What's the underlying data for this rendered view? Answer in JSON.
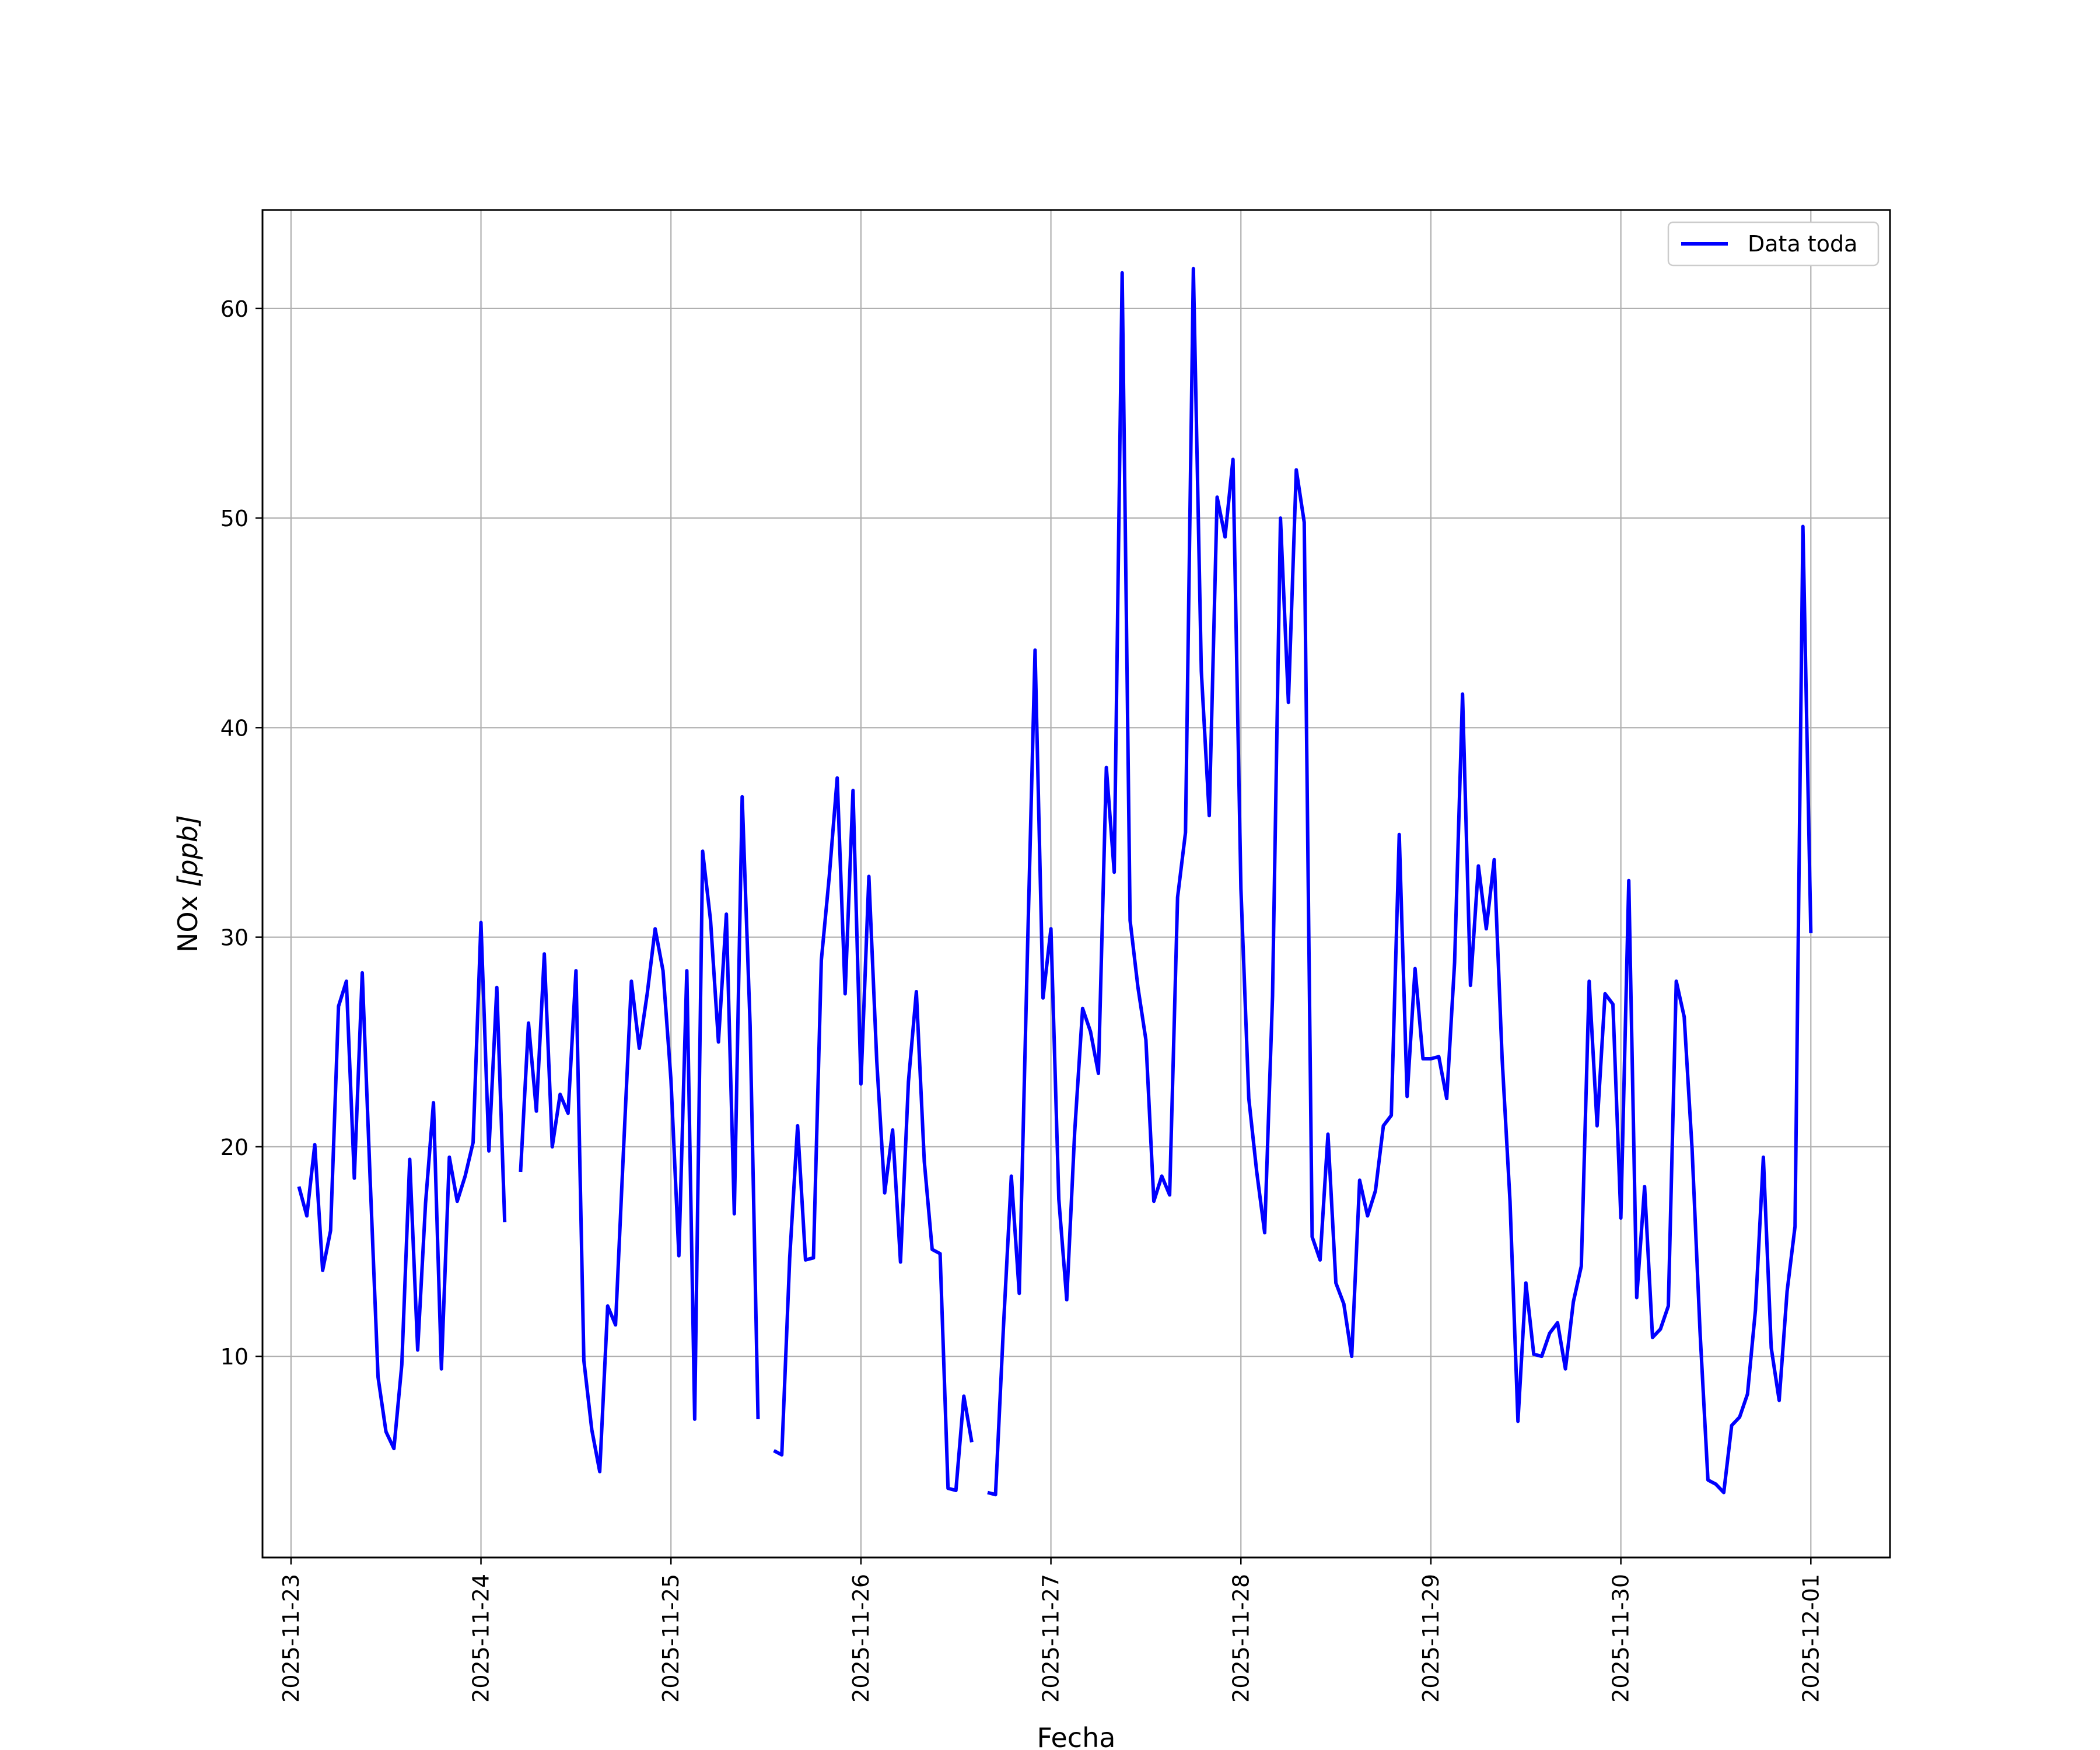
{
  "chart_data": {
    "type": "line",
    "xlabel": "Fecha",
    "ylabel_main": "NOx ",
    "ylabel_unit": "[ppb]",
    "x_ticks": [
      "2025-11-23",
      "2025-11-24",
      "2025-11-25",
      "2025-11-26",
      "2025-11-27",
      "2025-11-28",
      "2025-11-29",
      "2025-11-30",
      "2025-12-01"
    ],
    "y_ticks": [
      "10",
      "20",
      "30",
      "40",
      "50",
      "60"
    ],
    "xlim": [
      "2025-11-22 20:24",
      "2025-12-01 10:00"
    ],
    "ylim": [
      0.4,
      64.7
    ],
    "grid": true,
    "legend_position": "upper right",
    "series": [
      {
        "name": "Data toda",
        "color": "#0000ff",
        "x": [
          "2025-11-23 01:00",
          "2025-11-23 02:00",
          "2025-11-23 03:00",
          "2025-11-23 04:00",
          "2025-11-23 05:00",
          "2025-11-23 06:00",
          "2025-11-23 07:00",
          "2025-11-23 08:00",
          "2025-11-23 09:00",
          "2025-11-23 10:00",
          "2025-11-23 11:00",
          "2025-11-23 12:00",
          "2025-11-23 13:00",
          "2025-11-23 14:00",
          "2025-11-23 15:00",
          "2025-11-23 16:00",
          "2025-11-23 17:00",
          "2025-11-23 18:00",
          "2025-11-23 19:00",
          "2025-11-23 20:00",
          "2025-11-23 21:00",
          "2025-11-23 22:00",
          "2025-11-23 23:00",
          "2025-11-24 00:00",
          "2025-11-24 01:00",
          "2025-11-24 02:00",
          "2025-11-24 03:00",
          "2025-11-24 05:00",
          "2025-11-24 06:00",
          "2025-11-24 07:00",
          "2025-11-24 08:00",
          "2025-11-24 09:00",
          "2025-11-24 10:00",
          "2025-11-24 11:00",
          "2025-11-24 12:00",
          "2025-11-24 13:00",
          "2025-11-24 14:00",
          "2025-11-24 15:00",
          "2025-11-24 16:00",
          "2025-11-24 17:00",
          "2025-11-24 18:00",
          "2025-11-24 19:00",
          "2025-11-24 20:00",
          "2025-11-24 21:00",
          "2025-11-24 22:00",
          "2025-11-24 23:00",
          "2025-11-25 00:00",
          "2025-11-25 01:00",
          "2025-11-25 02:00",
          "2025-11-25 03:00",
          "2025-11-25 04:00",
          "2025-11-25 05:00",
          "2025-11-25 06:00",
          "2025-11-25 07:00",
          "2025-11-25 08:00",
          "2025-11-25 09:00",
          "2025-11-25 10:00",
          "2025-11-25 11:00",
          "2025-11-25 13:00",
          "2025-11-25 14:00",
          "2025-11-25 15:00",
          "2025-11-25 16:00",
          "2025-11-25 17:00",
          "2025-11-25 18:00",
          "2025-11-25 19:00",
          "2025-11-25 20:00",
          "2025-11-25 21:00",
          "2025-11-25 22:00",
          "2025-11-25 23:00",
          "2025-11-26 00:00",
          "2025-11-26 01:00",
          "2025-11-26 02:00",
          "2025-11-26 03:00",
          "2025-11-26 04:00",
          "2025-11-26 05:00",
          "2025-11-26 06:00",
          "2025-11-26 07:00",
          "2025-11-26 08:00",
          "2025-11-26 09:00",
          "2025-11-26 10:00",
          "2025-11-26 11:00",
          "2025-11-26 12:00",
          "2025-11-26 13:00",
          "2025-11-26 14:00",
          "2025-11-26 16:00",
          "2025-11-26 17:00",
          "2025-11-26 18:00",
          "2025-11-26 19:00",
          "2025-11-26 20:00",
          "2025-11-26 21:00",
          "2025-11-26 22:00",
          "2025-11-26 23:00",
          "2025-11-27 00:00",
          "2025-11-27 01:00",
          "2025-11-27 02:00",
          "2025-11-27 03:00",
          "2025-11-27 04:00",
          "2025-11-27 05:00",
          "2025-11-27 06:00",
          "2025-11-27 07:00",
          "2025-11-27 08:00",
          "2025-11-27 09:00",
          "2025-11-27 10:00",
          "2025-11-27 11:00",
          "2025-11-27 12:00",
          "2025-11-27 13:00",
          "2025-11-27 14:00",
          "2025-11-27 15:00",
          "2025-11-27 16:00",
          "2025-11-27 17:00",
          "2025-11-27 18:00",
          "2025-11-27 19:00",
          "2025-11-27 20:00",
          "2025-11-27 21:00",
          "2025-11-27 22:00",
          "2025-11-27 23:00",
          "2025-11-28 00:00",
          "2025-11-28 01:00",
          "2025-11-28 02:00",
          "2025-11-28 03:00",
          "2025-11-28 04:00",
          "2025-11-28 05:00",
          "2025-11-28 06:00",
          "2025-11-28 07:00",
          "2025-11-28 08:00",
          "2025-11-28 09:00",
          "2025-11-28 10:00",
          "2025-11-28 11:00",
          "2025-11-28 12:00",
          "2025-11-28 13:00",
          "2025-11-28 14:00",
          "2025-11-28 15:00",
          "2025-11-28 16:00",
          "2025-11-28 17:00",
          "2025-11-28 18:00",
          "2025-11-28 19:00",
          "2025-11-28 20:00",
          "2025-11-28 21:00",
          "2025-11-28 22:00",
          "2025-11-28 23:00",
          "2025-11-29 00:00",
          "2025-11-29 01:00",
          "2025-11-29 02:00",
          "2025-11-29 03:00",
          "2025-11-29 04:00",
          "2025-11-29 05:00",
          "2025-11-29 06:00",
          "2025-11-29 07:00",
          "2025-11-29 08:00",
          "2025-11-29 09:00",
          "2025-11-29 10:00",
          "2025-11-29 11:00",
          "2025-11-29 12:00",
          "2025-11-29 13:00",
          "2025-11-29 14:00",
          "2025-11-29 15:00",
          "2025-11-29 16:00",
          "2025-11-29 17:00",
          "2025-11-29 18:00",
          "2025-11-29 19:00",
          "2025-11-29 20:00",
          "2025-11-29 21:00",
          "2025-11-29 22:00",
          "2025-11-29 23:00",
          "2025-11-30 00:00",
          "2025-11-30 01:00",
          "2025-11-30 02:00",
          "2025-11-30 03:00",
          "2025-11-30 04:00",
          "2025-11-30 05:00",
          "2025-11-30 06:00",
          "2025-11-30 07:00",
          "2025-11-30 08:00",
          "2025-11-30 09:00",
          "2025-11-30 10:00",
          "2025-11-30 11:00",
          "2025-11-30 12:00",
          "2025-11-30 13:00",
          "2025-11-30 14:00",
          "2025-11-30 15:00",
          "2025-11-30 16:00",
          "2025-11-30 17:00",
          "2025-11-30 18:00",
          "2025-11-30 19:00",
          "2025-11-30 20:00",
          "2025-11-30 21:00",
          "2025-11-30 22:00",
          "2025-11-30 23:00",
          "2025-12-01 00:00"
        ],
        "segments": [
          [
            18.1,
            16.7,
            20.1,
            14.1,
            16.0,
            26.7,
            27.9,
            18.5,
            28.3,
            18.4,
            9.0,
            6.4,
            5.6,
            9.6,
            19.4,
            10.3,
            17.3,
            22.1,
            9.4,
            19.5,
            17.4,
            18.6,
            20.2,
            30.7,
            19.8,
            27.6,
            16.4
          ],
          [
            18.8,
            25.9,
            21.7,
            29.2,
            20.0,
            22.5,
            21.6,
            28.4,
            9.8,
            6.5,
            4.5,
            12.4,
            11.5,
            19.8,
            27.9,
            24.7,
            27.3,
            30.4,
            28.4,
            23.2,
            14.8,
            28.4,
            7.0,
            34.1,
            30.8,
            25.0,
            31.1,
            16.8,
            36.7,
            25.8,
            7.0
          ],
          [
            5.5,
            5.3,
            14.7,
            21.0,
            14.6,
            14.7,
            28.9,
            32.9,
            37.6,
            27.3,
            37.0,
            23.0,
            32.9,
            24.1,
            17.8,
            20.8,
            14.5,
            23.1,
            27.4,
            19.3,
            15.1,
            14.9,
            3.7,
            3.6,
            8.1,
            5.9
          ],
          [
            3.5,
            3.4,
            11.4,
            18.6,
            13.0,
            28.8,
            43.7,
            27.1,
            30.4,
            17.5,
            12.7,
            20.7,
            26.6,
            25.5,
            23.5,
            38.1,
            33.1,
            61.7,
            30.8,
            27.6,
            25.1,
            17.4,
            18.6,
            17.7,
            31.9,
            35.0,
            61.9,
            42.7,
            35.8,
            51.0,
            49.1,
            52.8,
            32.3,
            22.3,
            18.8,
            15.9,
            27.2,
            50.0,
            41.2,
            52.3,
            49.8,
            15.7,
            14.6,
            20.6,
            13.5,
            12.5,
            10.0,
            18.4,
            16.7,
            17.9,
            21.0,
            21.5,
            34.9,
            22.4,
            28.5,
            24.2,
            24.2,
            24.3,
            22.3,
            28.8,
            41.6,
            27.7,
            33.4,
            30.4,
            33.7,
            24.2,
            17.4,
            6.9,
            13.5,
            10.1,
            10.0,
            11.1,
            11.6,
            9.4,
            12.6,
            14.3,
            27.9,
            21.0,
            27.3,
            26.8,
            16.6,
            32.7,
            12.8,
            18.1,
            10.9,
            11.3,
            12.4,
            27.9,
            26.2,
            19.9,
            11.2,
            4.1,
            3.9,
            3.5,
            6.7,
            7.1,
            8.2,
            12.2,
            19.5,
            10.4,
            7.9,
            13.1,
            16.2,
            49.6,
            30.2
          ]
        ]
      }
    ]
  }
}
